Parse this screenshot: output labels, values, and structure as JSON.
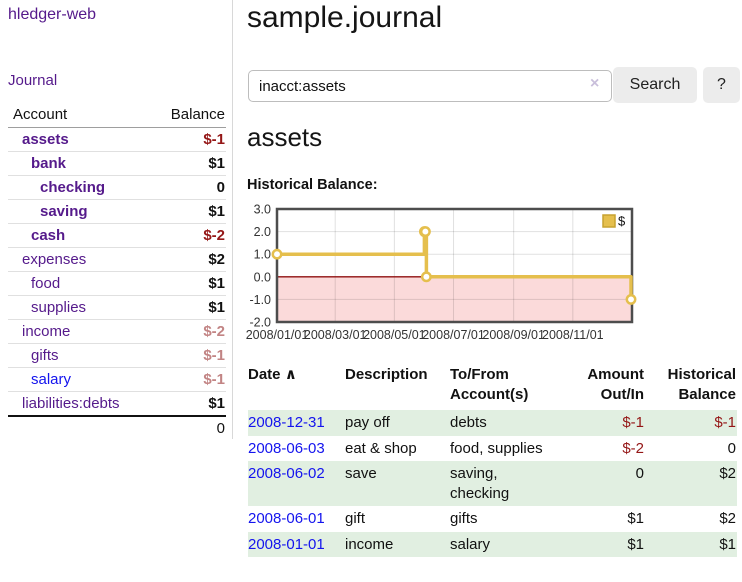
{
  "app": {
    "brand": "hledger-web",
    "nav_journal": "Journal",
    "title": "sample.journal"
  },
  "search": {
    "query": "inacct:assets",
    "clear_icon": "×",
    "search_label": "Search",
    "help_label": "?"
  },
  "sidebar": {
    "header": {
      "account": "Account",
      "balance": "Balance"
    },
    "accounts": [
      {
        "name": "assets",
        "balance": "$-1"
      },
      {
        "name": "bank",
        "balance": "$1"
      },
      {
        "name": "checking",
        "balance": "0"
      },
      {
        "name": "saving",
        "balance": "$1"
      },
      {
        "name": "cash",
        "balance": "$-2"
      },
      {
        "name": "expenses",
        "balance": "$2"
      },
      {
        "name": "food",
        "balance": "$1"
      },
      {
        "name": "supplies",
        "balance": "$1"
      },
      {
        "name": "income",
        "balance": "$-2"
      },
      {
        "name": "gifts",
        "balance": "$-1"
      },
      {
        "name": "salary",
        "balance": "$-1"
      },
      {
        "name": "liabilities:debts",
        "balance": "$1"
      }
    ],
    "total": "0"
  },
  "account_page": {
    "heading": "assets",
    "chart_title": "Historical Balance:"
  },
  "chart_data": {
    "type": "line",
    "title": "Historical Balance",
    "series": [
      {
        "name": "$",
        "color": "#e5bf4d",
        "points": [
          [
            "2008-01-01",
            1
          ],
          [
            "2008-06-01",
            2
          ],
          [
            "2008-06-02",
            2
          ],
          [
            "2008-06-03",
            0
          ],
          [
            "2008-12-31",
            -1
          ]
        ]
      }
    ],
    "ylim": [
      -2,
      3
    ],
    "y_ticks": [
      3,
      2,
      1,
      0,
      -1,
      -2
    ],
    "x_min": "2008-01-01",
    "x_span_days": 366,
    "x_ticks": [
      "2008/01/01",
      "2008/03/01",
      "2008/05/01",
      "2008/07/01",
      "2008/09/01",
      "2008/11/01"
    ],
    "legend_position": "top-right",
    "negative_fill": "#fbdada",
    "zero_line_color": "#8f0f0f",
    "grid": true
  },
  "register": {
    "headers": {
      "date": "Date",
      "sort_icon": "∧",
      "description": "Description",
      "tofrom": "To/From\nAccount(s)",
      "amount": "Amount\nOut/In",
      "balance": "Historical\nBalance"
    },
    "rows": [
      {
        "date": "2008-12-31",
        "description": "pay off",
        "accounts": "debts",
        "amount": "$-1",
        "balance": "$-1"
      },
      {
        "date": "2008-06-03",
        "description": "eat & shop",
        "accounts": "food, supplies",
        "amount": "$-2",
        "balance": "0"
      },
      {
        "date": "2008-06-02",
        "description": "save",
        "accounts": "saving, checking",
        "amount": "0",
        "balance": "$2"
      },
      {
        "date": "2008-06-01",
        "description": "gift",
        "accounts": "gifts",
        "amount": "$1",
        "balance": "$2"
      },
      {
        "date": "2008-01-01",
        "description": "income",
        "accounts": "salary",
        "amount": "$1",
        "balance": "$1"
      }
    ]
  },
  "colors": {
    "link_purple": "#551a8b",
    "link_blue": "#1414ee",
    "negative_strong": "#941616",
    "negative_faded": "#c28484",
    "row_stripe_green": "#e1efe1",
    "series_yellow": "#e5bf4d",
    "negative_region_pink": "#fbdada",
    "zero_line_red": "#8f0f0f",
    "button_gray": "#ececec"
  }
}
